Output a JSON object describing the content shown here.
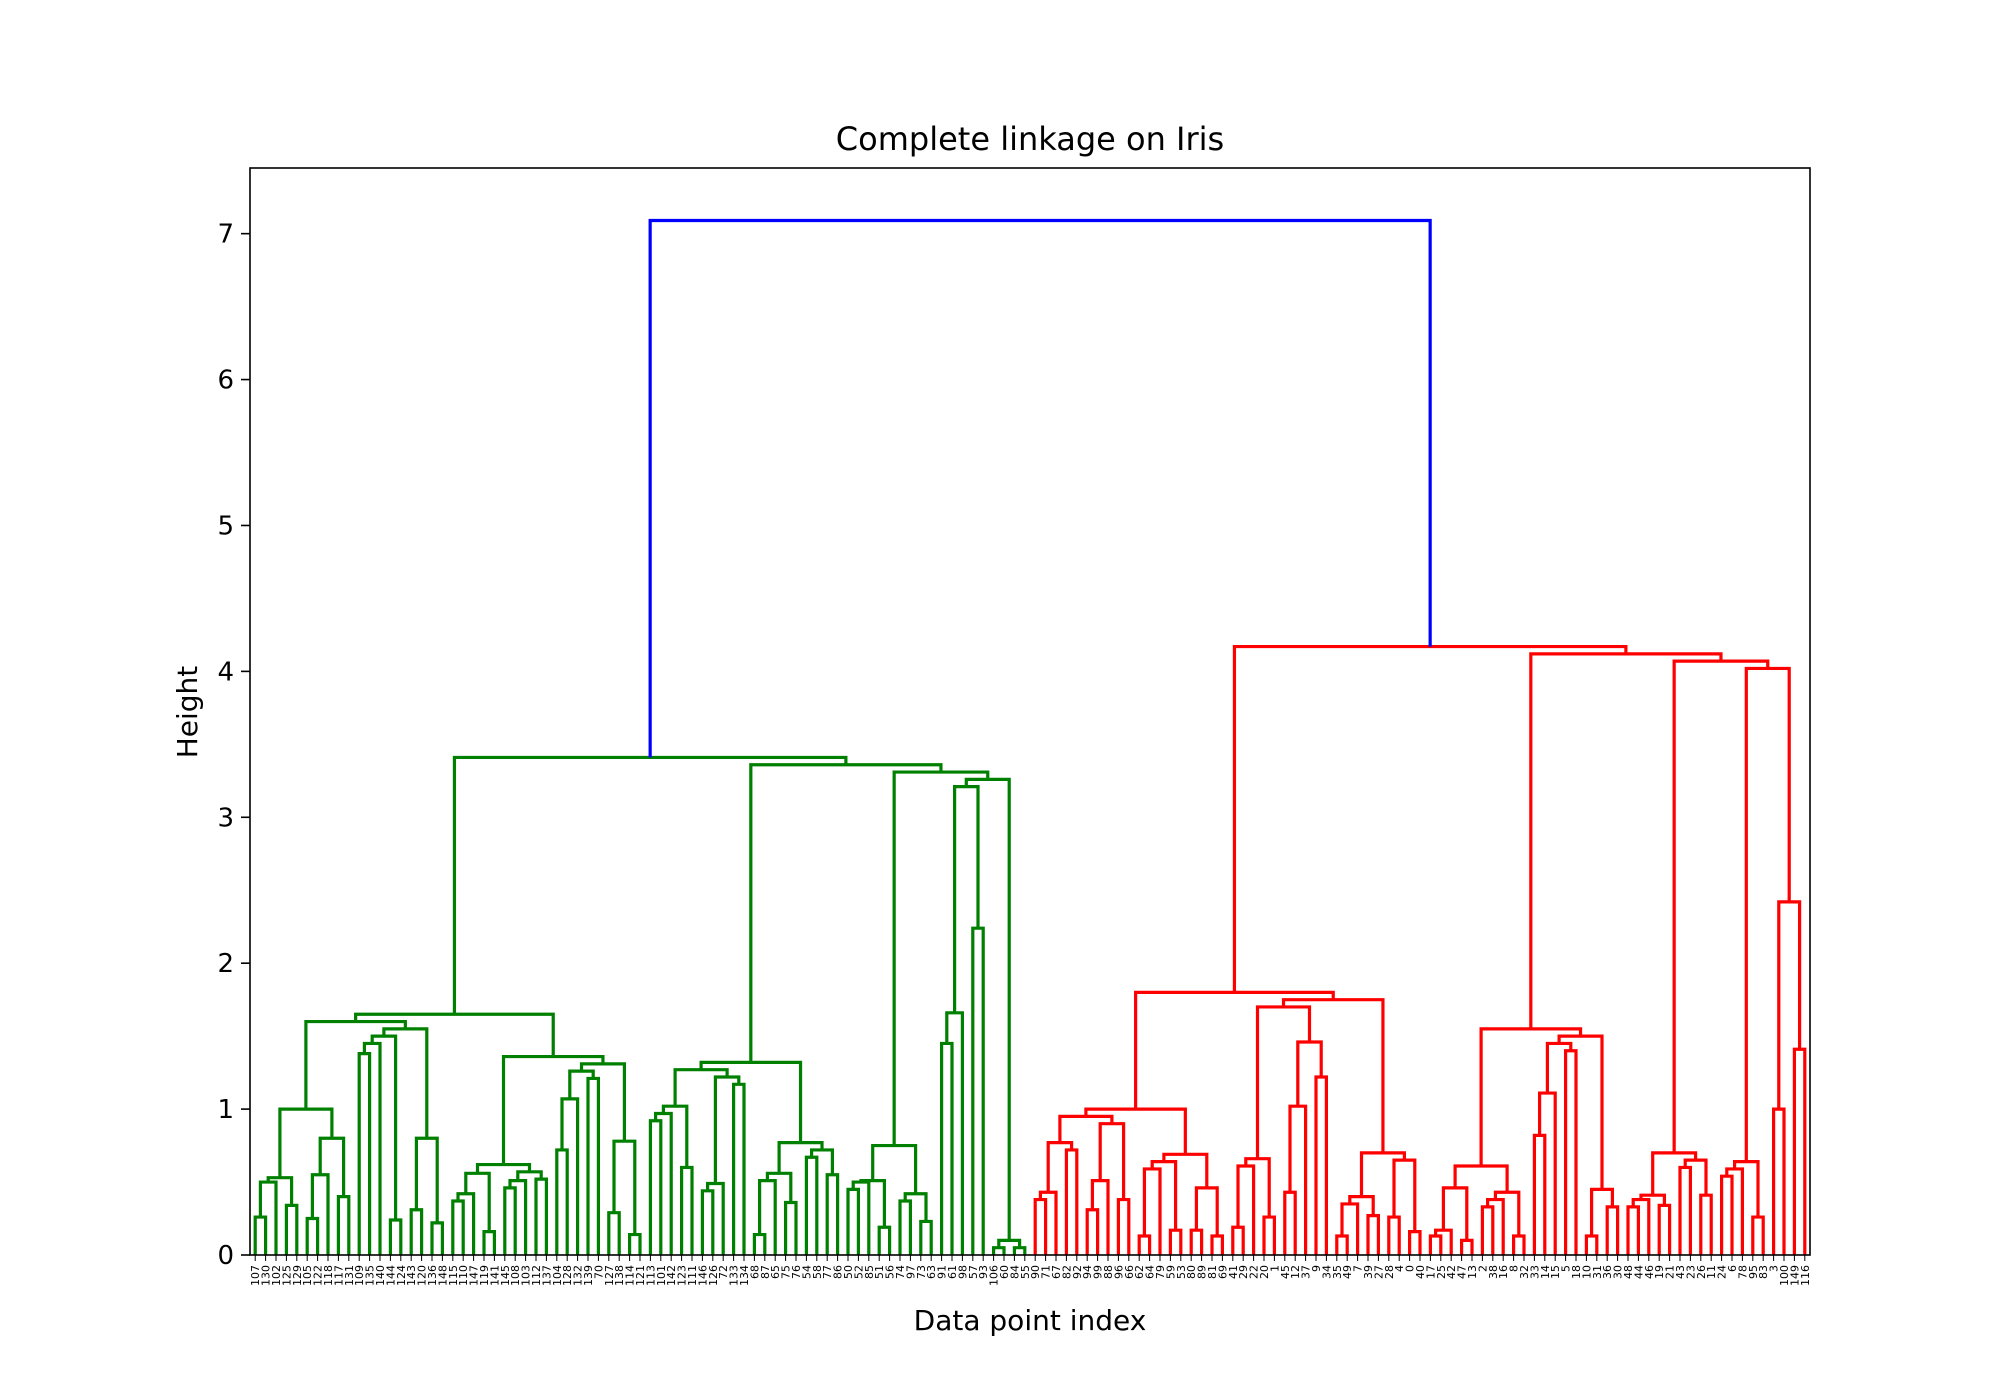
{
  "chart_data": {
    "type": "dendrogram",
    "title": "Complete linkage on Iris",
    "xlabel": "Data point index",
    "ylabel": "Height",
    "ylim": [
      0,
      7.45
    ],
    "y_ticks": [
      "0",
      "1",
      "2",
      "3",
      "4",
      "5",
      "6",
      "7"
    ],
    "grid": false,
    "leaf_count": 150,
    "colors": {
      "left_cluster": "#008000",
      "right_cluster": "#ff0000",
      "root": "#0000ff",
      "axes": "#000000"
    },
    "leaf_labels": [
      "107",
      "130",
      "102",
      "125",
      "129",
      "105",
      "122",
      "118",
      "117",
      "131",
      "109",
      "135",
      "140",
      "144",
      "124",
      "143",
      "120",
      "136",
      "148",
      "115",
      "110",
      "147",
      "119",
      "141",
      "145",
      "108",
      "103",
      "112",
      "137",
      "104",
      "128",
      "132",
      "139",
      "70",
      "127",
      "138",
      "114",
      "121",
      "113",
      "101",
      "142",
      "123",
      "111",
      "146",
      "126",
      "72",
      "133",
      "134",
      "68",
      "87",
      "65",
      "75",
      "76",
      "54",
      "58",
      "77",
      "86",
      "50",
      "52",
      "85",
      "51",
      "56",
      "74",
      "97",
      "73",
      "63",
      "91",
      "61",
      "98",
      "57",
      "93",
      "106",
      "60",
      "84",
      "55",
      "90",
      "71",
      "67",
      "82",
      "92",
      "94",
      "99",
      "88",
      "96",
      "66",
      "62",
      "64",
      "79",
      "59",
      "53",
      "80",
      "89",
      "81",
      "69",
      "41",
      "29",
      "22",
      "20",
      "1",
      "45",
      "12",
      "37",
      "9",
      "34",
      "35",
      "49",
      "7",
      "39",
      "27",
      "28",
      "4",
      "0",
      "40",
      "17",
      "25",
      "42",
      "47",
      "13",
      "2",
      "38",
      "16",
      "8",
      "32",
      "33",
      "14",
      "15",
      "5",
      "18",
      "10",
      "31",
      "36",
      "30",
      "48",
      "44",
      "46",
      "19",
      "21",
      "43",
      "23",
      "26",
      "11",
      "24",
      "6",
      "78",
      "95",
      "83",
      "3",
      "100",
      "149",
      "116"
    ],
    "left_cluster": {
      "merge_heights": [
        0.26,
        0.5,
        0.34,
        0.53,
        0.25,
        0.55,
        0.4,
        0.8,
        1.0,
        1.38,
        1.45,
        0.24,
        0.39,
        0.31,
        0.22,
        0.8,
        0.64,
        0.23,
        0.37,
        0.21,
        0.16,
        0.56,
        0.46,
        0.23,
        0.52,
        0.31,
        0.1,
        0.72,
        1.07,
        1.21,
        0.35,
        0.29,
        0.14,
        0.78,
        0.51,
        0.33,
        0.26,
        0.92,
        0.36,
        0.6,
        0.16,
        0.44,
        0.33,
        1.17,
        0.7,
        0.24,
        0.14,
        0.51,
        0.36,
        0.23,
        0.67,
        0.55,
        0.33,
        0.26,
        1.07,
        0.45,
        0.25,
        0.19,
        0.51,
        0.37,
        0.23,
        0.13,
        0.75,
        1.45,
        1.66,
        2.24,
        3.21
      ]
    },
    "right_cluster": {
      "merge_heights": [
        0.38,
        0.13,
        0.72,
        0.19,
        0.31,
        0.51,
        0.38,
        0.9,
        0.26,
        0.13,
        0.59,
        0.17,
        0.32,
        0.17,
        0.13,
        0.46,
        0.44,
        0.75,
        0.19,
        0.61,
        0.26,
        0.13,
        0.43,
        1.02,
        1.22,
        1.46,
        1.7,
        0.13,
        0.35,
        0.27,
        0.13,
        0.26,
        0.16,
        0.65,
        0.17,
        0.1,
        0.29,
        0.13,
        0.17,
        0.1,
        0.46,
        0.33,
        0.23,
        0.13,
        0.27,
        0.61,
        0.82,
        1.11,
        1.4,
        0.34,
        0.13,
        0.33,
        0.45,
        0.54,
        0.68,
        0.33,
        0.27,
        0.34,
        0.41,
        0.6,
        0.41,
        0.24,
        0.13,
        0.54,
        0.29,
        0.26,
        0.64,
        1.0,
        1.41,
        2.42,
        4.02
      ]
    },
    "root_merge_height": 7.09
  }
}
